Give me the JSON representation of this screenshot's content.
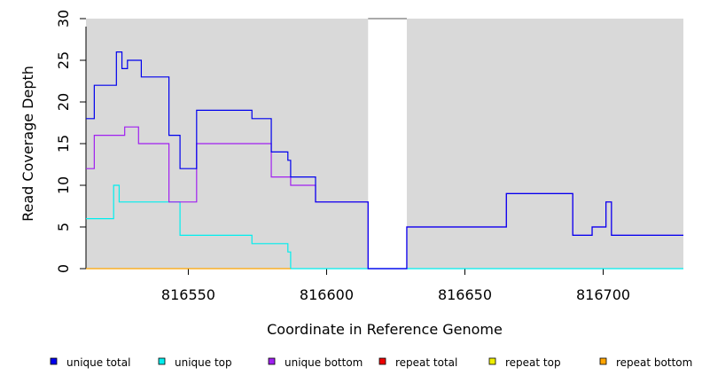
{
  "chart_data": {
    "type": "line",
    "title": "",
    "xlabel": "Coordinate in Reference Genome",
    "ylabel": "Read Coverage Depth",
    "xlim": [
      816513,
      816729
    ],
    "ylim": [
      0,
      30
    ],
    "x_ticks": [
      816550,
      816600,
      816650,
      816700
    ],
    "x_tick_labels": [
      "816550",
      "816600",
      "816650",
      "816700"
    ],
    "y_ticks": [
      0,
      5,
      10,
      15,
      20,
      25,
      30
    ],
    "y_tick_labels": [
      "0",
      "5",
      "10",
      "15",
      "20",
      "25",
      "30"
    ],
    "panel_background": "#d9d9d9",
    "gaps": [
      [
        816615,
        816629
      ]
    ],
    "legend_position": "bottom",
    "series": [
      {
        "name": "unique total",
        "color": "#0000ee",
        "step": [
          [
            816513,
            18
          ],
          [
            816516,
            22
          ],
          [
            816524,
            26
          ],
          [
            816526,
            24
          ],
          [
            816528,
            25
          ],
          [
            816533,
            23
          ],
          [
            816543,
            16
          ],
          [
            816547,
            12
          ],
          [
            816553,
            19
          ],
          [
            816573,
            18
          ],
          [
            816580,
            14
          ],
          [
            816586,
            13
          ],
          [
            816587,
            11
          ],
          [
            816596,
            8
          ],
          [
            816615,
            0
          ],
          [
            816629,
            5
          ],
          [
            816665,
            9
          ],
          [
            816689,
            4
          ],
          [
            816696,
            5
          ],
          [
            816701,
            8
          ],
          [
            816703,
            4
          ],
          [
            816729,
            4
          ]
        ]
      },
      {
        "name": "unique top",
        "color": "#00eeee",
        "step": [
          [
            816513,
            6
          ],
          [
            816523,
            10
          ],
          [
            816525,
            8
          ],
          [
            816547,
            4
          ],
          [
            816573,
            3
          ],
          [
            816586,
            2
          ],
          [
            816587,
            0
          ],
          [
            816729,
            0
          ]
        ]
      },
      {
        "name": "unique bottom",
        "color": "#a020f0",
        "step": [
          [
            816513,
            12
          ],
          [
            816516,
            16
          ],
          [
            816527,
            17
          ],
          [
            816532,
            15
          ],
          [
            816543,
            8
          ],
          [
            816553,
            15
          ],
          [
            816580,
            11
          ],
          [
            816587,
            10
          ],
          [
            816596,
            8
          ],
          [
            816615,
            0
          ],
          [
            816629,
            5
          ],
          [
            816665,
            9
          ],
          [
            816689,
            4
          ],
          [
            816696,
            5
          ],
          [
            816701,
            8
          ],
          [
            816703,
            4
          ],
          [
            816729,
            4
          ]
        ]
      },
      {
        "name": "repeat total",
        "color": "#ee0000",
        "step": []
      },
      {
        "name": "repeat top",
        "color": "#eeee00",
        "step": []
      },
      {
        "name": "repeat bottom",
        "color": "#ffa500",
        "step": [
          [
            816513,
            0
          ],
          [
            816587,
            0
          ]
        ]
      }
    ]
  }
}
